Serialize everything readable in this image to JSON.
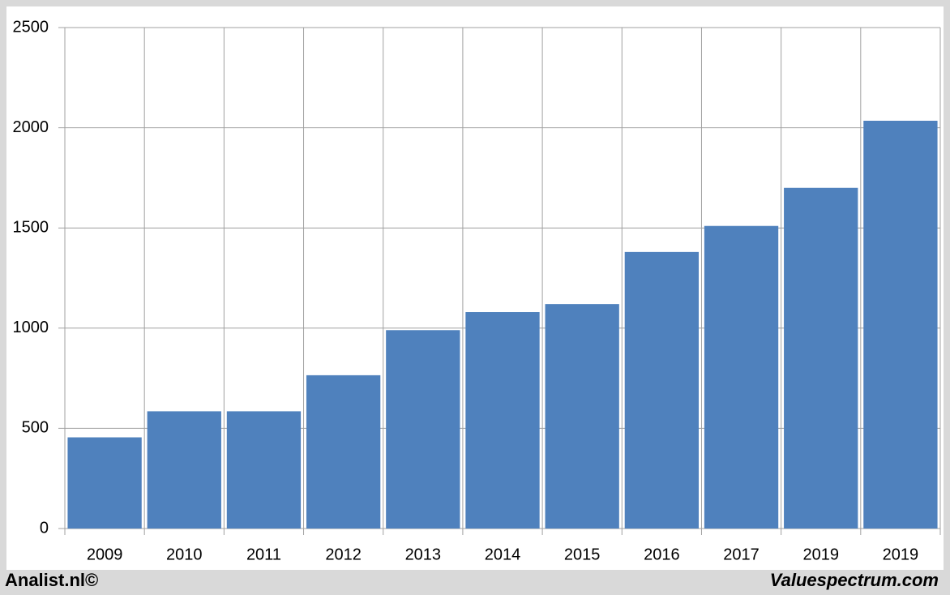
{
  "chart_data": {
    "type": "bar",
    "categories": [
      "2009",
      "2010",
      "2011",
      "2012",
      "2013",
      "2014",
      "2015",
      "2016",
      "2017",
      "2019",
      "2019"
    ],
    "values": [
      455,
      585,
      585,
      765,
      990,
      1080,
      1120,
      1380,
      1510,
      1700,
      2035
    ],
    "color": "#4f81bd",
    "ylim": [
      0,
      2500
    ],
    "yticks": [
      0,
      500,
      1000,
      1500,
      2000,
      2500
    ],
    "grid": true
  },
  "footer": {
    "left": "Analist.nl©",
    "right": "Valuespectrum.com"
  }
}
